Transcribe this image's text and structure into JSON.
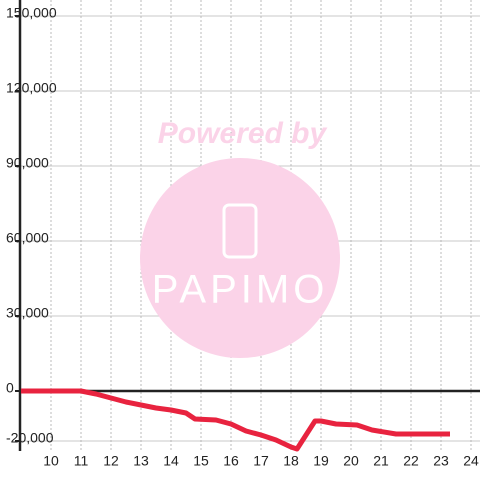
{
  "chart_data": {
    "type": "line",
    "x": [
      9,
      11,
      11.5,
      12,
      12.5,
      13,
      13.5,
      14,
      14.5,
      14.8,
      15.5,
      16,
      16.5,
      17,
      17.5,
      18,
      18.2,
      18.8,
      19,
      19.5,
      20.2,
      20.7,
      21.5,
      23.3
    ],
    "series": [
      {
        "color": "#e8233f",
        "values": [
          0,
          0,
          -1200,
          -2800,
          -4400,
          -5600,
          -6800,
          -7600,
          -8800,
          -11200,
          -11600,
          -13200,
          -16000,
          -17600,
          -19600,
          -22400,
          -23200,
          -12000,
          -12000,
          -13200,
          -13600,
          -15600,
          -17200,
          -17200
        ]
      }
    ],
    "xlim": [
      9,
      24.3
    ],
    "ylim": [
      -24000,
      150000
    ],
    "xticks": [
      10,
      11,
      12,
      13,
      14,
      15,
      16,
      17,
      18,
      19,
      20,
      21,
      22,
      23,
      24
    ],
    "yticks": [
      {
        "value": -20000,
        "label": "-20,000"
      },
      0,
      {
        "value": 30000,
        "label": "30,000"
      },
      {
        "value": 60000,
        "label": "60,000"
      },
      {
        "value": 90000,
        "label": "90,000"
      },
      {
        "value": 120000,
        "label": "120,000"
      },
      {
        "value": 150000,
        "label": "150,000"
      }
    ],
    "grid": true,
    "watermark": {
      "line1": "Powered by",
      "line2": "PAPIMO"
    }
  }
}
